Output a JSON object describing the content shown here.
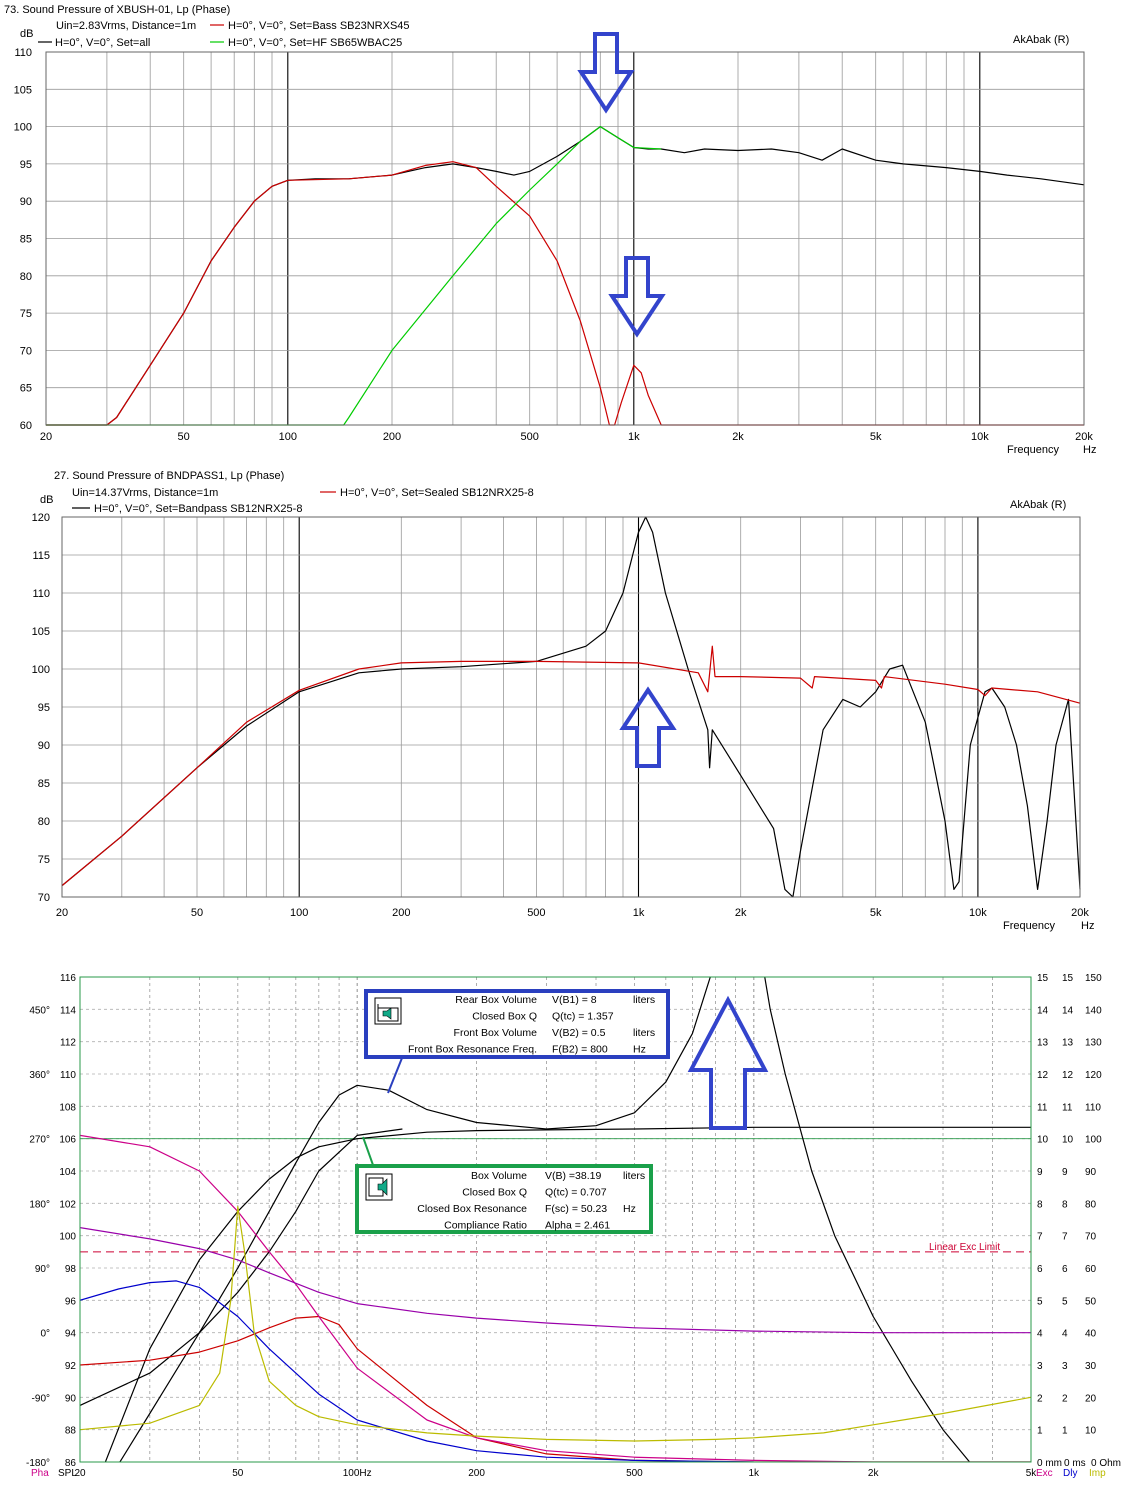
{
  "chart_data": [
    {
      "type": "line",
      "title": "73. Sound Pressure of XBUSH-01, Lp (Phase)",
      "subtitle": "Uin=2.83Vrms, Distance=1m",
      "brand": "AkAbak (R)",
      "ylabel": "dB",
      "xlabel": "Frequency",
      "xunit": "Hz",
      "xscale": "log",
      "xlim": [
        20,
        20000
      ],
      "ylim": [
        60,
        110
      ],
      "grid": true,
      "legend_position": "top-left",
      "x_ticks": [
        "20",
        "50",
        "100",
        "200",
        "500",
        "1k",
        "2k",
        "5k",
        "10k",
        "20k"
      ],
      "y_ticks": [
        "60",
        "65",
        "70",
        "75",
        "80",
        "85",
        "90",
        "95",
        "100",
        "105",
        "110"
      ],
      "series": [
        {
          "name": "H=0°, V=0°, Set=all",
          "color": "#000000",
          "x": [
            20,
            30,
            32,
            40,
            50,
            60,
            70,
            80,
            90,
            100,
            120,
            150,
            200,
            250,
            300,
            350,
            400,
            450,
            500,
            600,
            700,
            800,
            900,
            1000,
            1100,
            1200,
            1400,
            1600,
            2000,
            2500,
            3000,
            3500,
            4000,
            5000,
            6000,
            8000,
            10000,
            12000,
            15000,
            20000
          ],
          "y": [
            60,
            60,
            61,
            68,
            75,
            82,
            86.5,
            90,
            92,
            92.8,
            93,
            93,
            93.5,
            94.5,
            95,
            94.5,
            94,
            93.5,
            94,
            96,
            98,
            100,
            98.5,
            97.2,
            97,
            97,
            96.5,
            97,
            96.8,
            97,
            96.5,
            95.5,
            97,
            95.5,
            95,
            94.5,
            94,
            93.5,
            93,
            92.2
          ]
        },
        {
          "name": "H=0°, V=0°, Set=Bass SB23NRXS45",
          "color": "#cc0000",
          "x": [
            20,
            30,
            32,
            40,
            50,
            60,
            70,
            80,
            90,
            100,
            150,
            200,
            250,
            300,
            350,
            400,
            500,
            600,
            700,
            800,
            850,
            880,
            920,
            1000,
            1050,
            1100,
            1200,
            1300,
            2000,
            5000,
            20000
          ],
          "y": [
            60,
            60,
            61,
            68,
            75,
            82,
            86.5,
            90,
            92,
            92.8,
            93,
            93.5,
            94.8,
            95.3,
            94.5,
            92,
            88,
            82,
            74,
            65,
            60,
            60,
            63,
            68,
            67,
            64,
            60,
            60,
            60,
            60,
            60
          ]
        },
        {
          "name": "H=0°, V=0°, Set=HF SB65WBAC25",
          "color": "#00cc00",
          "x": [
            20,
            145,
            150,
            200,
            300,
            400,
            500,
            600,
            700,
            800,
            900,
            1000,
            1200
          ],
          "y": [
            60,
            60,
            61,
            70,
            80,
            87,
            91.5,
            95,
            98,
            100,
            98.5,
            97.2,
            97
          ]
        }
      ]
    },
    {
      "type": "line",
      "title": "27. Sound Pressure of BNDPASS1, Lp (Phase)",
      "subtitle": "Uin=14.37Vrms, Distance=1m",
      "brand": "AkAbak (R)",
      "ylabel": "dB",
      "xlabel": "Frequency",
      "xunit": "Hz",
      "xscale": "log",
      "xlim": [
        20,
        20000
      ],
      "ylim": [
        70,
        120
      ],
      "grid": true,
      "legend_position": "top-left",
      "x_ticks": [
        "20",
        "50",
        "100",
        "200",
        "500",
        "1k",
        "2k",
        "5k",
        "10k",
        "20k"
      ],
      "y_ticks": [
        "70",
        "75",
        "80",
        "85",
        "90",
        "95",
        "100",
        "105",
        "110",
        "115",
        "120"
      ],
      "series": [
        {
          "name": "H=0°, V=0°, Set=Bandpass SB12NRX25-8",
          "color": "#000000",
          "x": [
            20,
            30,
            50,
            70,
            100,
            150,
            200,
            300,
            500,
            700,
            800,
            900,
            1000,
            1050,
            1100,
            1200,
            1400,
            1600,
            1620,
            1650,
            2000,
            2500,
            2700,
            2850,
            3000,
            3500,
            4000,
            4500,
            5000,
            5500,
            6000,
            7000,
            8000,
            8500,
            8800,
            9500,
            10500,
            11000,
            12000,
            13000,
            14000,
            15000,
            16000,
            17000,
            18500,
            20000
          ],
          "y": [
            71.5,
            78,
            87,
            92.5,
            97,
            99.5,
            100,
            100.3,
            101,
            103,
            105,
            110,
            118,
            120,
            118,
            110,
            100,
            92,
            87,
            92,
            86,
            79,
            71,
            70,
            76,
            92,
            96,
            95,
            97,
            100,
            100.5,
            93,
            80,
            71,
            72,
            90,
            97,
            97.5,
            95,
            90,
            82,
            71,
            80,
            90,
            96,
            71
          ]
        },
        {
          "name": "H=0°, V=0°, Set=Sealed SB12NRX25-8",
          "color": "#cc0000",
          "x": [
            20,
            30,
            50,
            70,
            100,
            150,
            200,
            300,
            500,
            1000,
            1500,
            1600,
            1650,
            1680,
            2000,
            3000,
            3250,
            3300,
            5000,
            5200,
            5300,
            8000,
            10000,
            10500,
            11000,
            15000,
            20000
          ],
          "y": [
            71.5,
            78,
            87,
            93,
            97.2,
            100,
            100.8,
            101,
            101,
            100.8,
            99.5,
            97,
            103,
            99,
            99,
            98.8,
            97.5,
            99,
            98.5,
            97.5,
            99,
            98,
            97.3,
            96.5,
            97.5,
            97,
            95.5
          ]
        }
      ]
    },
    {
      "type": "line",
      "y_ticks_spl": [
        "86",
        "88",
        "90",
        "92",
        "94",
        "96",
        "98",
        "100",
        "102",
        "104",
        "106",
        "108",
        "110",
        "112",
        "114",
        "116"
      ],
      "y_ticks_phase": [
        "-180°",
        "-90°",
        "0°",
        "90°",
        "180°",
        "270°",
        "360°",
        "450°"
      ],
      "right_ticks_exc": [
        "0 mm",
        "1",
        "2",
        "3",
        "4",
        "5",
        "6",
        "7",
        "8",
        "9",
        "10",
        "11",
        "12",
        "13",
        "14",
        "15"
      ],
      "right_ticks_dly": [
        "0 ms",
        "1",
        "2",
        "3",
        "4",
        "5",
        "6",
        "7",
        "8",
        "9",
        "10",
        "11",
        "12",
        "13",
        "14",
        "15"
      ],
      "right_ticks_imp": [
        "0 Ohm",
        "10",
        "20",
        "30",
        "40",
        "50",
        "60",
        "70",
        "80",
        "90",
        "100",
        "110",
        "120",
        "130",
        "140",
        "150"
      ],
      "axis_labels": {
        "phase": "Pha",
        "spl": "SPL",
        "exc": "Exc",
        "dly": "Dly",
        "imp": "Imp"
      },
      "x_ticks": [
        "20",
        "50",
        "100Hz",
        "200",
        "500",
        "1k",
        "2k",
        "5k"
      ],
      "xscale": "log",
      "xlim": [
        20,
        5000
      ],
      "ylim": [
        86,
        116
      ],
      "grid": true,
      "limit_line": {
        "label": "Linear Exc Limit",
        "y": 99.0,
        "color": "#cc0033"
      },
      "annotations": [
        {
          "color": "#2a3fbf",
          "rows": [
            {
              "name": "Rear Box Volume",
              "expr": "V(B1) = 8",
              "unit": "liters"
            },
            {
              "name": "Closed Box Q",
              "expr": "Q(tc) = 1.357",
              "unit": ""
            },
            {
              "name": "Front Box Volume",
              "expr": "V(B2) = 0.5",
              "unit": "liters"
            },
            {
              "name": "Front Box Resonance Freq.",
              "expr": "F(B2) = 800",
              "unit": "Hz"
            }
          ]
        },
        {
          "color": "#1aa04a",
          "rows": [
            {
              "name": "Box Volume",
              "expr": "V(B) =38.19",
              "unit": "liters"
            },
            {
              "name": "Closed Box Q",
              "expr": "Q(tc) = 0.707",
              "unit": ""
            },
            {
              "name": "Closed Box Resonance",
              "expr": "F(sc) = 50.23",
              "unit": "Hz"
            },
            {
              "name": "Compliance Ratio",
              "expr": "Alpha = 2.461",
              "unit": ""
            }
          ]
        }
      ],
      "series": [
        {
          "color": "#000000",
          "x": [
            20,
            30,
            40,
            50,
            60,
            70,
            80,
            90,
            100,
            120,
            150,
            200,
            300,
            400,
            500,
            600,
            700,
            800,
            850
          ],
          "y": [
            82,
            89,
            94,
            98,
            101.5,
            104.5,
            107,
            108.7,
            109.3,
            109,
            107.8,
            107,
            106.6,
            106.8,
            107.6,
            109.5,
            112.5,
            117,
            120
          ]
        },
        {
          "color": "#000000",
          "x": [
            20,
            30,
            40,
            50,
            60,
            70,
            80,
            100,
            150,
            200,
            500,
            1000,
            5000
          ],
          "y": [
            82,
            93,
            98.5,
            101.5,
            103.5,
            104.8,
            105.5,
            106,
            106.4,
            106.5,
            106.6,
            106.7,
            106.7
          ]
        },
        {
          "color": "#000000",
          "x": [
            1000,
            1100,
            1200,
            1400,
            1600,
            2000,
            2500,
            3000,
            3500
          ],
          "y": [
            120,
            114,
            110,
            104,
            100,
            95,
            91,
            88,
            86
          ]
        },
        {
          "color": "#000000",
          "x": [
            20,
            30,
            40,
            50,
            60,
            70,
            80,
            100,
            130
          ],
          "y": [
            89.5,
            91.5,
            94,
            96.5,
            99,
            101.5,
            104,
            106.2,
            106.6
          ]
        },
        {
          "color": "#cc0000",
          "x": [
            20,
            30,
            40,
            50,
            60,
            70,
            80,
            90,
            100,
            150,
            200,
            300,
            500,
            1000,
            2000,
            5000
          ],
          "y": [
            92,
            92.3,
            92.8,
            93.5,
            94.3,
            94.9,
            95,
            94.5,
            93,
            89.5,
            87.5,
            86.5,
            86.1,
            86,
            86,
            86
          ]
        },
        {
          "color": "#cc0088",
          "x": [
            20,
            30,
            40,
            50,
            60,
            70,
            80,
            100,
            150,
            200,
            300,
            500,
            1000,
            2000,
            5000
          ],
          "y": [
            106.2,
            105.5,
            104,
            101.5,
            99,
            97,
            95,
            91.8,
            88.6,
            87.5,
            86.7,
            86.3,
            86.1,
            86,
            86
          ]
        },
        {
          "color": "#9900aa",
          "x": [
            20,
            30,
            40,
            50,
            60,
            80,
            100,
            150,
            200,
            300,
            500,
            1000,
            2000,
            5000
          ],
          "y": [
            100.5,
            99.8,
            99.2,
            98.5,
            97.7,
            96.5,
            95.8,
            95.2,
            94.9,
            94.6,
            94.3,
            94.1,
            94,
            94
          ]
        },
        {
          "color": "#0000cc",
          "x": [
            20,
            25,
            30,
            35,
            40,
            50,
            60,
            70,
            80,
            100,
            150,
            200,
            300,
            500,
            1000
          ],
          "y": [
            96,
            96.7,
            97.1,
            97.2,
            96.8,
            95,
            93,
            91.5,
            90.2,
            88.6,
            87.3,
            86.7,
            86.3,
            86.1,
            86
          ]
        },
        {
          "color": "#bbbb00",
          "x": [
            20,
            30,
            40,
            45,
            48,
            50,
            52,
            55,
            60,
            70,
            80,
            100,
            150,
            200,
            300,
            500,
            800,
            1000,
            1500,
            2000,
            3000,
            5000
          ],
          "y": [
            88,
            88.4,
            89.5,
            91.5,
            96,
            101.8,
            99,
            94,
            91,
            89.5,
            88.8,
            88.3,
            87.8,
            87.6,
            87.4,
            87.3,
            87.4,
            87.5,
            87.8,
            88.3,
            89,
            90
          ]
        }
      ]
    }
  ]
}
